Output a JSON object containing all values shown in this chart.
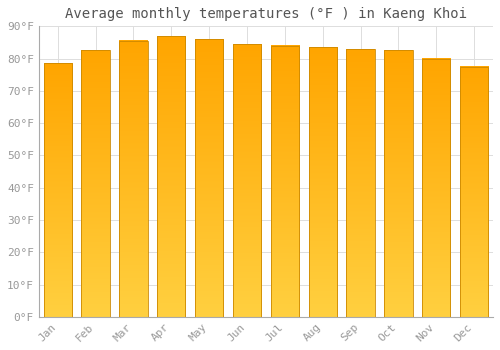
{
  "title": "Average monthly temperatures (°F ) in Kaeng Khoi",
  "months": [
    "Jan",
    "Feb",
    "Mar",
    "Apr",
    "May",
    "Jun",
    "Jul",
    "Aug",
    "Sep",
    "Oct",
    "Nov",
    "Dec"
  ],
  "values": [
    78.5,
    82.5,
    85.5,
    87.0,
    86.0,
    84.5,
    84.0,
    83.5,
    83.0,
    82.5,
    80.0,
    77.5
  ],
  "bar_color_top": "#FFA500",
  "bar_color_bottom": "#FFD040",
  "bar_edge_color": "#CC8800",
  "background_color": "#FFFFFF",
  "plot_bg_color": "#FFFFFF",
  "ylim": [
    0,
    90
  ],
  "yticks": [
    0,
    10,
    20,
    30,
    40,
    50,
    60,
    70,
    80,
    90
  ],
  "ytick_labels": [
    "0°F",
    "10°F",
    "20°F",
    "30°F",
    "40°F",
    "50°F",
    "60°F",
    "70°F",
    "80°F",
    "90°F"
  ],
  "grid_color": "#DDDDDD",
  "title_fontsize": 10,
  "tick_fontsize": 8,
  "tick_color": "#999999"
}
